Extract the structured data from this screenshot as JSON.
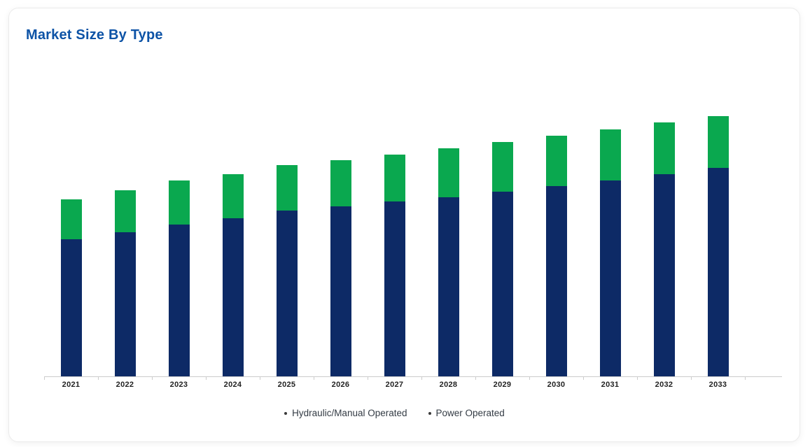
{
  "chart_data": {
    "type": "bar",
    "stacked": true,
    "title": "Market Size By Type",
    "categories": [
      "2021",
      "2022",
      "2023",
      "2024",
      "2025",
      "2026",
      "2027",
      "2028",
      "2029",
      "2030",
      "2031",
      "2032",
      "2033"
    ],
    "series": [
      {
        "name": "Hydraulic/Manual Operated",
        "color": "#0d2a66",
        "values": [
          196,
          206,
          217,
          226,
          237,
          243,
          250,
          256,
          264,
          272,
          280,
          289,
          298
        ]
      },
      {
        "name": "Power Operated",
        "color": "#0aa84f",
        "values": [
          57,
          60,
          63,
          63,
          65,
          66,
          67,
          70,
          71,
          72,
          73,
          74,
          74
        ]
      }
    ],
    "xlabel": "",
    "ylabel": "",
    "ylim": [
      0,
      400
    ],
    "gridlines": false,
    "y_axis_visible": false,
    "legend_position": "bottom-center"
  },
  "legend": {
    "marker": "dot",
    "items": [
      {
        "label": "Hydraulic/Manual Operated"
      },
      {
        "label": "Power Operated"
      }
    ]
  },
  "theme": {
    "title_color": "#0d53a6",
    "axis_line_color": "#cccccc",
    "axis_label_color": "#222222",
    "legend_text_color": "#333b44",
    "legend_marker_color": "#3a3a3a",
    "bar_hydraulic_color": "#0d2a66",
    "bar_power_color": "#0aa84f",
    "card_background": "#ffffff",
    "card_border_color": "#ebebeb"
  }
}
